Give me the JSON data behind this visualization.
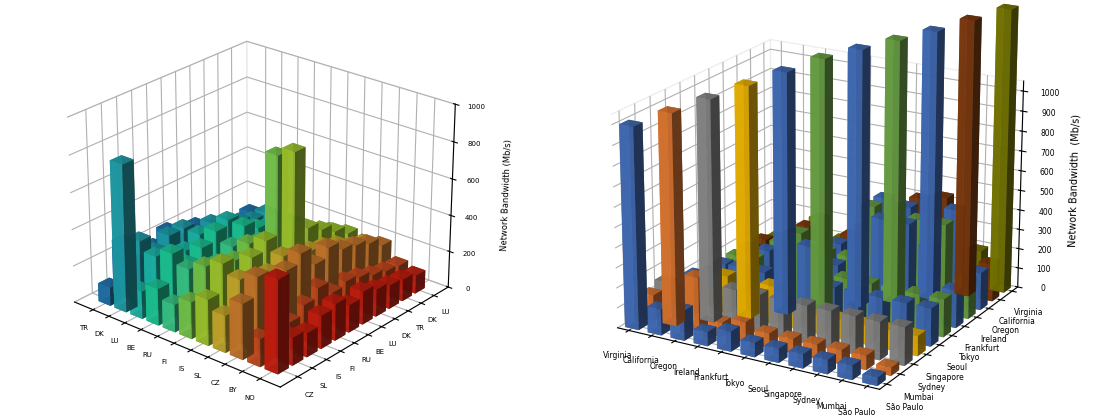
{
  "left_chart": {
    "ylabel": "Network Bandwidth (Mb/s)",
    "yticks": [
      0,
      200,
      400,
      600,
      800,
      1000
    ],
    "x_labels": [
      "TR",
      "DK",
      "LU",
      "BE",
      "RU",
      "FI",
      "IS",
      "SL",
      "CZ",
      "BY",
      "NO"
    ],
    "y_labels": [
      "CZ",
      "SL",
      "IS",
      "FI",
      "RU",
      "BE",
      "LU",
      "DK",
      "TR",
      "DK",
      "LU"
    ],
    "data": [
      [
        100,
        300,
        150,
        200,
        250,
        150,
        200,
        150,
        120,
        100,
        120
      ],
      [
        800,
        350,
        250,
        300,
        300,
        200,
        250,
        200,
        180,
        150,
        150
      ],
      [
        150,
        300,
        200,
        250,
        300,
        250,
        300,
        200,
        180,
        150,
        150
      ],
      [
        200,
        350,
        250,
        300,
        350,
        200,
        300,
        250,
        200,
        180,
        150
      ],
      [
        150,
        300,
        200,
        250,
        300,
        200,
        250,
        200,
        180,
        150,
        130
      ],
      [
        200,
        350,
        200,
        300,
        350,
        250,
        750,
        300,
        250,
        200,
        180
      ],
      [
        250,
        400,
        250,
        350,
        400,
        300,
        800,
        350,
        300,
        250,
        200
      ],
      [
        200,
        350,
        200,
        300,
        350,
        250,
        300,
        280,
        250,
        200,
        180
      ],
      [
        300,
        400,
        300,
        350,
        400,
        300,
        350,
        300,
        280,
        250,
        200
      ],
      [
        150,
        200,
        150,
        200,
        250,
        180,
        200,
        180,
        150,
        130,
        120
      ],
      [
        500,
        150,
        130,
        180,
        200,
        150,
        180,
        150,
        130,
        120,
        100
      ]
    ],
    "color_sequence": [
      "#1f77b4",
      "#1fa8b4",
      "#1fc4b4",
      "#1fd4a0",
      "#3dd490",
      "#7dd450",
      "#aad430",
      "#d4b430",
      "#d48030",
      "#d45020",
      "#d42010"
    ]
  },
  "right_chart": {
    "ylabel": "Network Bandwidth  （Mb/s）",
    "yticks": [
      0,
      100,
      200,
      300,
      400,
      500,
      600,
      700,
      800,
      900,
      1000
    ],
    "regions": [
      "Virginia",
      "California",
      "Oregon",
      "Ireland",
      "Frankfurt",
      "Tokyo",
      "Seoul",
      "Singapore",
      "Sydney",
      "Mumbai",
      "São Paulo"
    ],
    "src_colors": [
      "#4472c4",
      "#ed7d31",
      "#909090",
      "#ffc000",
      "#4472c4",
      "#70ad47",
      "#4472c4",
      "#70ad47",
      "#4472c4",
      "#843c0c",
      "#7f7f00"
    ],
    "bar_heights": {
      "Virginia": [
        1000,
        130,
        150,
        70,
        100,
        70,
        70,
        70,
        70,
        70,
        40
      ],
      "California": [
        130,
        1050,
        150,
        70,
        100,
        70,
        70,
        70,
        70,
        70,
        40
      ],
      "Oregon": [
        150,
        270,
        1100,
        190,
        190,
        190,
        190,
        190,
        190,
        190,
        190
      ],
      "Ireland": [
        70,
        70,
        190,
        1150,
        190,
        70,
        100,
        100,
        100,
        100,
        100
      ],
      "Frankfurt": [
        100,
        100,
        190,
        190,
        1200,
        370,
        190,
        190,
        190,
        190,
        190
      ],
      "Tokyo": [
        70,
        70,
        190,
        70,
        370,
        1250,
        190,
        190,
        190,
        190,
        190
      ],
      "Seoul": [
        70,
        70,
        190,
        100,
        190,
        190,
        1280,
        470,
        470,
        380,
        190
      ],
      "Singapore": [
        70,
        70,
        190,
        100,
        190,
        190,
        470,
        1310,
        450,
        450,
        190
      ],
      "Sydney": [
        70,
        70,
        190,
        100,
        190,
        190,
        470,
        450,
        1340,
        480,
        190
      ],
      "Mumbai": [
        70,
        70,
        190,
        100,
        190,
        190,
        380,
        450,
        480,
        1380,
        190
      ],
      "São Paulo": [
        40,
        40,
        190,
        100,
        190,
        190,
        190,
        190,
        190,
        190,
        1420
      ]
    }
  }
}
